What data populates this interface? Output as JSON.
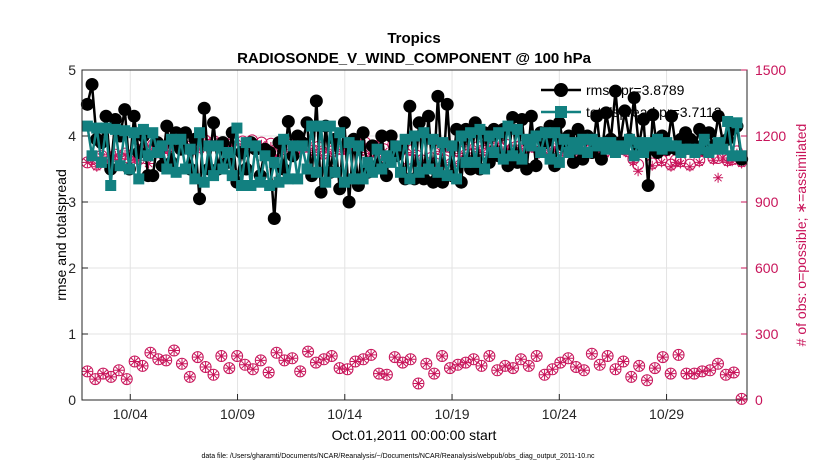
{
  "chart_data": {
    "type": "line",
    "title": "Tropics",
    "subtitle": "RADIOSONDE_V_WIND_COMPONENT @ 100 hPa",
    "xlabel": "Oct.01,2011 00:00:00 start",
    "ylabel_left": "rmse and totalspread",
    "ylabel_right": "# of obs: o=possible; ∗=assimilated",
    "ylim_left": [
      0,
      5
    ],
    "ylim_right": [
      0,
      1500
    ],
    "xlim": [
      0.75,
      31.75
    ],
    "yticks_left": [
      "0",
      "1",
      "2",
      "3",
      "4",
      "5"
    ],
    "yticks_right": [
      "0",
      "300",
      "600",
      "900",
      "1200",
      "1500"
    ],
    "xticks": [
      {
        "day": 3,
        "label": "10/04"
      },
      {
        "day": 8,
        "label": "10/09"
      },
      {
        "day": 13,
        "label": "10/14"
      },
      {
        "day": 18,
        "label": "10/19"
      },
      {
        "day": 23,
        "label": "10/24"
      },
      {
        "day": 28,
        "label": "10/29"
      }
    ],
    "legend_location": "top-right",
    "grid": true,
    "footnote": "data file: /Users/gharamti/Documents/NCAR/Reanalysis/~/Documents/NCAR/Reanalysis/webpub/obs_diag_output_2011-10.nc",
    "series": [
      {
        "name": "rmse",
        "legend_label": "rmse pr=3.8789",
        "axis": "left",
        "color": "#000000",
        "marker": "circle",
        "values": [
          4.48,
          4.78,
          3.95,
          3.9,
          4.3,
          3.5,
          4.25,
          4.0,
          4.4,
          3.5,
          4.3,
          3.75,
          4.0,
          3.4,
          3.4,
          3.9,
          3.55,
          4.15,
          3.6,
          4.05,
          3.8,
          4.05,
          3.5,
          3.95,
          3.05,
          4.42,
          3.5,
          4.2,
          3.5,
          3.9,
          3.6,
          4.05,
          3.3,
          3.75,
          3.5,
          3.9,
          3.8,
          3.4,
          3.8,
          3.75,
          2.75,
          3.9,
          3.5,
          4.22,
          3.7,
          4.0,
          3.9,
          4.2,
          3.4,
          4.53,
          3.15,
          4.15,
          3.45,
          3.95,
          3.2,
          4.2,
          3.0,
          3.95,
          3.25,
          4.05,
          3.45,
          3.85,
          3.55,
          4.0,
          3.4,
          4.0,
          3.7,
          3.8,
          3.35,
          4.45,
          3.35,
          4.2,
          3.35,
          4.3,
          3.3,
          4.6,
          3.3,
          4.48,
          3.4,
          4.1,
          3.3,
          4.1,
          3.5,
          4.2,
          3.5,
          4.05,
          3.6,
          4.1,
          3.7,
          4.1,
          3.55,
          4.28,
          3.6,
          4.25,
          3.5,
          4.3,
          3.55,
          4.05,
          3.9,
          4.15,
          3.55,
          4.2,
          3.85,
          4.0,
          3.6,
          4.1,
          3.65,
          4.0,
          3.75,
          4.3,
          3.65,
          4.35,
          3.95,
          4.68,
          3.9,
          4.38,
          3.95,
          4.58,
          3.85,
          4.25,
          3.25,
          4.32,
          3.75,
          4.0,
          3.8,
          4.3,
          3.8,
          3.95,
          4.05,
          3.95,
          3.85,
          4.1,
          3.8,
          4.05,
          3.85,
          4.3,
          3.9,
          3.95,
          4.1,
          4.15,
          3.65
        ]
      },
      {
        "name": "totalspread",
        "legend_label": "totalspread pr=3.7112",
        "axis": "left",
        "color": "#128080",
        "marker": "square",
        "values": [
          4.15,
          3.7,
          4.12,
          3.6,
          4.12,
          3.25,
          4.1,
          3.55,
          4.08,
          3.5,
          4.05,
          3.35,
          4.1,
          3.7,
          4.05,
          3.75,
          3.85,
          3.5,
          3.95,
          3.45,
          3.95,
          3.5,
          3.8,
          3.35,
          4.05,
          3.3,
          3.85,
          3.4,
          3.85,
          3.5,
          3.75,
          3.4,
          4.12,
          3.25,
          3.9,
          3.25,
          3.85,
          3.3,
          3.7,
          3.25,
          3.6,
          3.3,
          3.95,
          3.35,
          3.85,
          3.35,
          3.85,
          3.5,
          4.15,
          3.45,
          4.15,
          3.3,
          4.15,
          3.45,
          4.05,
          3.3,
          3.9,
          3.35,
          3.85,
          3.35,
          3.6,
          3.45,
          3.8,
          3.5,
          3.7,
          3.6,
          3.85,
          3.45,
          3.95,
          3.35,
          4.0,
          3.45,
          4.05,
          3.5,
          3.95,
          3.45,
          3.9,
          3.4,
          3.85,
          3.35,
          4.0,
          3.6,
          4.05,
          3.6,
          4.1,
          3.5,
          4.0,
          3.75,
          4.05,
          3.65,
          4.15,
          3.7,
          4.1,
          3.65,
          3.95,
          3.85,
          4.0,
          3.75,
          4.05,
          3.65,
          4.05,
          3.6,
          3.95,
          3.75,
          3.9,
          3.8,
          3.95,
          3.75,
          3.95,
          3.85,
          3.9,
          3.8,
          3.9,
          3.75,
          3.85,
          3.8,
          3.95,
          3.7,
          3.9,
          3.75,
          3.9,
          3.85,
          3.95,
          3.8,
          3.9,
          3.85,
          3.85,
          3.75,
          3.8,
          3.8,
          3.75,
          3.8,
          3.95,
          3.75,
          3.8,
          3.9,
          3.8,
          4.22,
          3.7,
          4.2,
          3.7
        ]
      },
      {
        "name": "obs possible (upper)",
        "axis": "right",
        "color": "#c8145a",
        "marker": "circle-star",
        "values": [
          1080,
          1095,
          1070,
          1110,
          1090,
          1075,
          1115,
          1100,
          1120,
          1085,
          1110,
          1095,
          1145,
          1130,
          1160,
          1135,
          1150,
          1145,
          1165,
          1175,
          1150,
          1175,
          1140,
          1170,
          1150,
          1180,
          1160,
          1175,
          1165,
          1145,
          1160,
          1180,
          1140,
          1175,
          1160,
          1180,
          1150,
          1170,
          1135,
          1165,
          1120,
          1155,
          1140,
          1160,
          1130,
          1155,
          1150,
          1165,
          1135,
          1150,
          1120,
          1150,
          1130,
          1160,
          1140,
          1145,
          1150,
          1160,
          1135,
          1170,
          1130,
          1155,
          1110,
          1140,
          1100,
          1160,
          1120,
          1145,
          1095,
          1135,
          1110,
          1090,
          1060,
          1100,
          1075,
          1140,
          1090,
          1150,
          1085,
          1130,
          1100,
          1160,
          1120,
          1150,
          1135,
          1165,
          1150,
          1175,
          1145,
          1160,
          1135,
          1150,
          1155,
          1140,
          1170,
          1150,
          1130,
          1165,
          1145,
          1155,
          1160,
          1135,
          1145,
          1165,
          1130,
          1160,
          1125,
          1155,
          1140,
          1150,
          1130,
          1160,
          1135,
          1145,
          1140,
          1130,
          1095,
          1070,
          1140,
          1160,
          1075,
          1150,
          1090,
          1135,
          1070,
          1090,
          1085,
          1140,
          1070,
          1145,
          1090,
          1130,
          1130,
          1100,
          1100,
          1110,
          1090,
          1095,
          1130,
          1085
        ]
      },
      {
        "name": "obs assimilated (upper)",
        "axis": "right",
        "color": "#c8145a",
        "marker": "star",
        "values": [
          1080,
          1090,
          1060,
          1105,
          1085,
          1070,
          1110,
          1095,
          1115,
          1080,
          1100,
          1090,
          1135,
          1075,
          1150,
          1120,
          1140,
          1130,
          1150,
          1165,
          1140,
          1165,
          1130,
          1160,
          1140,
          1170,
          1150,
          1165,
          1155,
          1135,
          1150,
          1170,
          1130,
          1165,
          1150,
          1170,
          1140,
          1160,
          1125,
          1150,
          1110,
          1145,
          1130,
          1150,
          1120,
          1145,
          1140,
          1155,
          1125,
          1140,
          1110,
          1140,
          1120,
          1150,
          1130,
          1135,
          1140,
          1150,
          1125,
          1160,
          1120,
          1145,
          1100,
          1130,
          1085,
          1150,
          1110,
          1135,
          1010,
          1125,
          1100,
          1080,
          1050,
          1090,
          1065,
          1130,
          1080,
          1140,
          1075,
          1120,
          1090,
          1150,
          1110,
          1140,
          1125,
          1155,
          1140,
          1165,
          1135,
          1150,
          1125,
          1140,
          1145,
          1130,
          1160,
          1140,
          1120,
          1155,
          1135,
          1145,
          1150,
          1125,
          1135,
          1155,
          1120,
          1150,
          1115,
          1145,
          1130,
          1140,
          1120,
          1150,
          1125,
          1135,
          1130,
          1120,
          1080,
          1040,
          1130,
          1150,
          1065,
          1140,
          1080,
          1125,
          1060,
          1080,
          1075,
          1130,
          1060,
          1135,
          1080,
          1120,
          1120,
          1090,
          1010,
          1100,
          1080,
          1085,
          1120,
          1075
        ]
      },
      {
        "name": "obs possible (lower)",
        "axis": "right",
        "color": "#c8145a",
        "marker": "circle-star",
        "values": [
          130,
          95,
          120,
          105,
          135,
          95,
          175,
          155,
          215,
          185,
          180,
          225,
          165,
          105,
          195,
          150,
          115,
          200,
          145,
          200,
          160,
          140,
          180,
          125,
          215,
          180,
          190,
          130,
          220,
          170,
          185,
          200,
          145,
          140,
          175,
          185,
          205,
          120,
          115,
          195,
          170,
          185,
          75,
          165,
          120,
          200,
          145,
          160,
          170,
          185,
          155,
          200,
          135,
          155,
          145,
          185,
          155,
          200,
          115,
          140,
          170,
          190,
          150,
          135,
          210,
          160,
          200,
          140,
          175,
          105,
          155,
          90,
          145,
          195,
          120,
          205,
          120,
          120,
          130,
          135,
          165,
          115,
          125,
          5
        ]
      },
      {
        "name": "obs assimilated (lower)",
        "axis": "right",
        "color": "#c8145a",
        "marker": "star",
        "values": [
          130,
          95,
          120,
          105,
          135,
          95,
          175,
          155,
          215,
          185,
          180,
          225,
          165,
          105,
          195,
          150,
          115,
          200,
          145,
          200,
          160,
          140,
          180,
          125,
          215,
          180,
          190,
          130,
          220,
          170,
          185,
          200,
          145,
          140,
          175,
          185,
          205,
          120,
          115,
          195,
          170,
          185,
          75,
          165,
          120,
          200,
          145,
          160,
          170,
          185,
          155,
          200,
          135,
          155,
          145,
          185,
          155,
          200,
          115,
          140,
          170,
          190,
          150,
          135,
          210,
          160,
          200,
          140,
          175,
          105,
          155,
          90,
          145,
          195,
          120,
          205,
          120,
          120,
          130,
          135,
          165,
          115,
          125,
          5
        ]
      }
    ]
  }
}
